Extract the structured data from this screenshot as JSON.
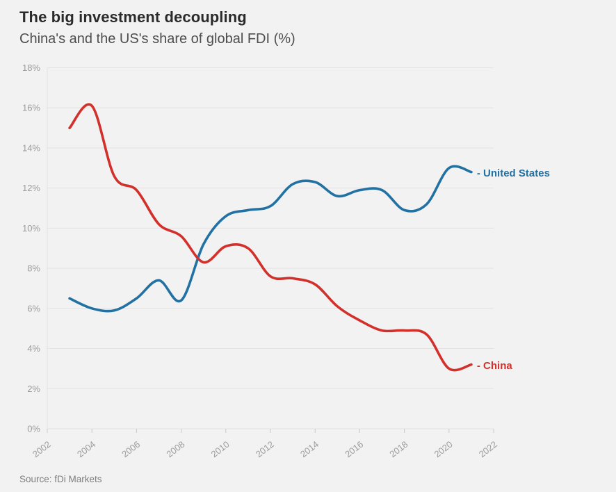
{
  "header": {
    "title": "The big investment decoupling",
    "subtitle": "China's and the US's share of global FDI (%)"
  },
  "source": "Source: fDi Markets",
  "colors": {
    "background": "#f2f2f2",
    "grid": "#e4e2e2",
    "axis_text": "#9c9c9c",
    "tick": "#c9c9c9",
    "title_text": "#2b2b2b",
    "subtitle_text": "#4e4e4e",
    "source_text": "#7d7d7d",
    "us_blue": "#2271a3",
    "china_red": "#d2302a"
  },
  "chart_data": {
    "type": "line",
    "title": "The big investment decoupling",
    "subtitle": "China's and the US's share of global FDI (%)",
    "xlabel": "",
    "ylabel": "",
    "x": [
      2003,
      2004,
      2005,
      2006,
      2007,
      2008,
      2009,
      2010,
      2011,
      2012,
      2013,
      2014,
      2015,
      2016,
      2017,
      2018,
      2019,
      2020,
      2021
    ],
    "series": [
      {
        "name": "United States",
        "color": "#2271a3",
        "values": [
          6.5,
          6.0,
          5.9,
          6.5,
          7.4,
          6.4,
          9.2,
          10.6,
          10.9,
          11.1,
          12.2,
          12.3,
          11.6,
          11.9,
          11.9,
          10.9,
          11.2,
          13.0,
          12.8
        ]
      },
      {
        "name": "China",
        "color": "#d2302a",
        "values": [
          15.0,
          16.1,
          12.6,
          11.9,
          10.2,
          9.6,
          8.3,
          9.1,
          9.0,
          7.6,
          7.5,
          7.2,
          6.1,
          5.4,
          4.9,
          4.9,
          4.7,
          3.0,
          3.2
        ]
      }
    ],
    "x_ticks": [
      2002,
      2004,
      2006,
      2008,
      2010,
      2012,
      2014,
      2016,
      2018,
      2020,
      2022
    ],
    "y_ticks": [
      "0%",
      "2%",
      "4%",
      "6%",
      "8%",
      "10%",
      "12%",
      "14%",
      "16%",
      "18%"
    ],
    "xlim": [
      2002,
      2022
    ],
    "ylim": [
      0,
      18
    ],
    "grid": "horizontal",
    "legend_position": "line-end-labels",
    "label_dash": "-"
  }
}
